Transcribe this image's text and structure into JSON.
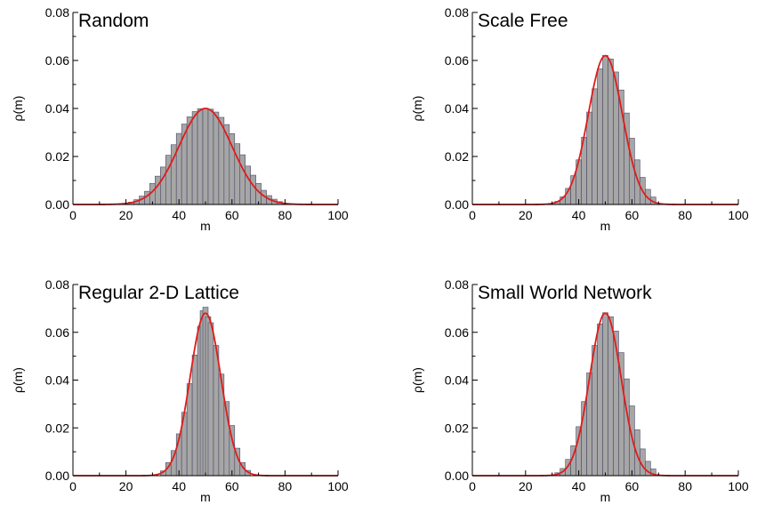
{
  "chart_data": [
    {
      "type": "bar",
      "title": "Random",
      "xlabel": "m",
      "ylabel": "ρ(m)",
      "xlim": [
        0,
        100
      ],
      "ylim": [
        0,
        0.08
      ],
      "xticks": [
        "0",
        "20",
        "40",
        "60",
        "80",
        "100"
      ],
      "yticks": [
        "0.00",
        "0.02",
        "0.04",
        "0.06",
        "0.08"
      ],
      "fit": {
        "mean": 50,
        "peak": 0.04,
        "sigma": 10
      },
      "hist": {
        "x": [
          20,
          22,
          24,
          26,
          28,
          30,
          32,
          34,
          36,
          38,
          40,
          42,
          44,
          46,
          48,
          50,
          52,
          54,
          56,
          58,
          60,
          62,
          64,
          66,
          68,
          70,
          72,
          74,
          76,
          78,
          80
        ],
        "values": [
          0.0005,
          0.001,
          0.002,
          0.0035,
          0.0055,
          0.0088,
          0.0118,
          0.0156,
          0.0205,
          0.0249,
          0.0296,
          0.0335,
          0.0365,
          0.0387,
          0.0399,
          0.0401,
          0.0397,
          0.0385,
          0.0363,
          0.0333,
          0.0295,
          0.0253,
          0.0207,
          0.016,
          0.0122,
          0.0088,
          0.0059,
          0.0037,
          0.0022,
          0.0012,
          0.0005
        ]
      }
    },
    {
      "type": "bar",
      "title": "Scale Free",
      "xlabel": "m",
      "ylabel": "ρ(m)",
      "xlim": [
        0,
        100
      ],
      "ylim": [
        0,
        0.08
      ],
      "xticks": [
        "0",
        "20",
        "40",
        "60",
        "80",
        "100"
      ],
      "yticks": [
        "0.00",
        "0.02",
        "0.04",
        "0.06",
        "0.08"
      ],
      "fit": {
        "mean": 50,
        "peak": 0.062,
        "sigma": 6.4
      },
      "hist": {
        "x": [
          32,
          34,
          36,
          38,
          40,
          42,
          44,
          46,
          48,
          50,
          52,
          54,
          56,
          58,
          60,
          62,
          64,
          66,
          68
        ],
        "values": [
          0.0013,
          0.0032,
          0.0067,
          0.012,
          0.0186,
          0.028,
          0.0385,
          0.0482,
          0.0565,
          0.0621,
          0.0606,
          0.0552,
          0.0477,
          0.0381,
          0.0276,
          0.0186,
          0.0113,
          0.0063,
          0.0031
        ]
      }
    },
    {
      "type": "bar",
      "title": "Regular 2-D Lattice",
      "xlabel": "m",
      "ylabel": "ρ(m)",
      "xlim": [
        0,
        100
      ],
      "ylim": [
        0,
        0.08
      ],
      "xticks": [
        "0",
        "20",
        "40",
        "60",
        "80",
        "100"
      ],
      "yticks": [
        "0.00",
        "0.02",
        "0.04",
        "0.06",
        "0.08"
      ],
      "fit": {
        "mean": 50,
        "peak": 0.068,
        "sigma": 5.8
      },
      "hist": {
        "x": [
          34,
          36,
          38,
          40,
          42,
          44,
          46,
          48,
          49,
          50,
          51,
          52,
          54,
          56,
          58,
          60,
          62,
          64,
          66
        ],
        "values": [
          0.002,
          0.0055,
          0.0105,
          0.0175,
          0.0265,
          0.0385,
          0.0505,
          0.0625,
          0.069,
          0.0705,
          0.0665,
          0.064,
          0.0545,
          0.0425,
          0.031,
          0.021,
          0.0115,
          0.0055,
          0.0022
        ]
      }
    },
    {
      "type": "bar",
      "title": "Small World Network",
      "xlabel": "m",
      "ylabel": "ρ(m)",
      "xlim": [
        0,
        100
      ],
      "ylim": [
        0,
        0.08
      ],
      "xticks": [
        "0",
        "20",
        "40",
        "60",
        "80",
        "100"
      ],
      "yticks": [
        "0.00",
        "0.02",
        "0.04",
        "0.06",
        "0.08"
      ],
      "fit": {
        "mean": 50,
        "peak": 0.068,
        "sigma": 5.9
      },
      "hist": {
        "x": [
          32,
          34,
          36,
          38,
          40,
          42,
          44,
          46,
          48,
          50,
          52,
          54,
          56,
          58,
          60,
          62,
          64,
          66,
          68
        ],
        "values": [
          0.0012,
          0.003,
          0.0068,
          0.0125,
          0.0205,
          0.031,
          0.043,
          0.0545,
          0.0635,
          0.0682,
          0.0665,
          0.0605,
          0.0515,
          0.0405,
          0.0292,
          0.0192,
          0.0112,
          0.006,
          0.0028
        ]
      }
    }
  ],
  "colors": {
    "bar_fill": "#a6a6a6",
    "bar_edge": "#4a4a68",
    "fit_line": "#e01b1b",
    "axis": "#000000"
  }
}
